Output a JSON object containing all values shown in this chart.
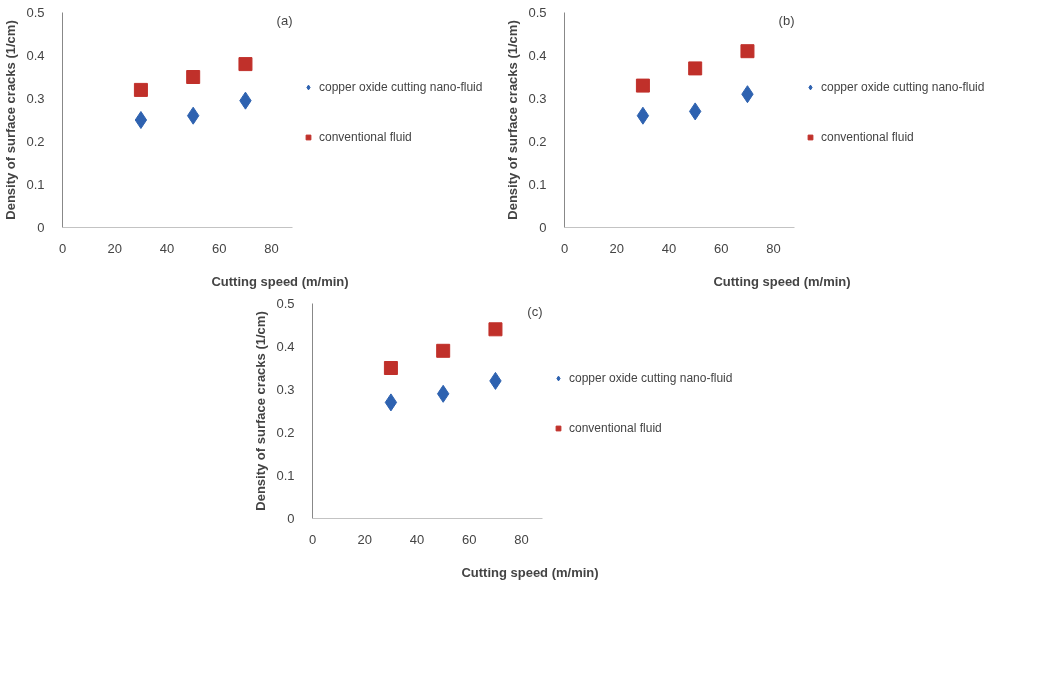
{
  "chart_data": [
    {
      "type": "scatter",
      "xlabel": "Cutting speed (m/min)",
      "ylabel": "Density of surface cracks (1/cm)",
      "annotations": [
        "(a)"
      ],
      "x": [
        30,
        50,
        70
      ],
      "xlim": [
        0,
        88
      ],
      "xticks": [
        0,
        20,
        40,
        60,
        80
      ],
      "ylim": [
        0,
        0.5
      ],
      "yticks": [
        0,
        0.1,
        0.2,
        0.3,
        0.4,
        0.5
      ],
      "grid": false,
      "legend": "right",
      "series": [
        {
          "name": "copper oxide cutting nano-fluid",
          "color": "#2e62b0",
          "marker": "diamond",
          "values": [
            0.25,
            0.26,
            0.295
          ]
        },
        {
          "name": "conventional fluid",
          "color": "#c0302a",
          "marker": "square",
          "values": [
            0.32,
            0.35,
            0.38
          ]
        }
      ]
    },
    {
      "type": "scatter",
      "xlabel": "Cutting speed (m/min)",
      "ylabel": "Density of surface cracks (1/cm)",
      "annotations": [
        "(b)"
      ],
      "x": [
        30,
        50,
        70
      ],
      "xlim": [
        0,
        88
      ],
      "xticks": [
        0,
        20,
        40,
        60,
        80
      ],
      "ylim": [
        0,
        0.5
      ],
      "yticks": [
        0,
        0.1,
        0.2,
        0.3,
        0.4,
        0.5
      ],
      "grid": false,
      "legend": "right",
      "series": [
        {
          "name": "copper oxide cutting nano-fluid",
          "color": "#2e62b0",
          "marker": "diamond",
          "values": [
            0.26,
            0.27,
            0.31
          ]
        },
        {
          "name": "conventional fluid",
          "color": "#c0302a",
          "marker": "square",
          "values": [
            0.33,
            0.37,
            0.41
          ]
        }
      ]
    },
    {
      "type": "scatter",
      "xlabel": "Cutting speed (m/min)",
      "ylabel": "Density of surface cracks (1/cm)",
      "annotations": [
        "(c)"
      ],
      "x": [
        30,
        50,
        70
      ],
      "xlim": [
        0,
        88
      ],
      "xticks": [
        0,
        20,
        40,
        60,
        80
      ],
      "ylim": [
        0,
        0.5
      ],
      "yticks": [
        0,
        0.1,
        0.2,
        0.3,
        0.4,
        0.5
      ],
      "grid": false,
      "legend": "right",
      "series": [
        {
          "name": "copper oxide cutting nano-fluid",
          "color": "#2e62b0",
          "marker": "diamond",
          "values": [
            0.27,
            0.29,
            0.32
          ]
        },
        {
          "name": "conventional fluid",
          "color": "#c0302a",
          "marker": "square",
          "values": [
            0.35,
            0.39,
            0.44
          ]
        }
      ]
    }
  ]
}
